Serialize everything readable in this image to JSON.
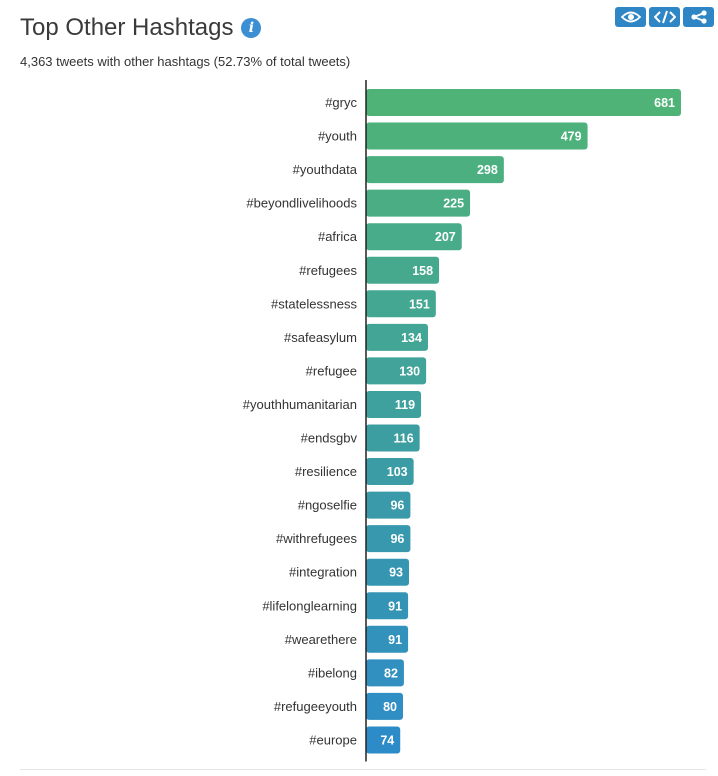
{
  "header": {
    "title": "Top Other Hashtags",
    "info_icon": "info-icon",
    "subtitle": "4,363 tweets with other hashtags (52.73% of total tweets)"
  },
  "toolbar": {
    "buttons": [
      {
        "name": "view-button",
        "icon": "eye-icon"
      },
      {
        "name": "embed-button",
        "icon": "code-icon"
      },
      {
        "name": "share-button",
        "icon": "share-icon"
      }
    ]
  },
  "colors": {
    "accent_blue": "#2f86c5",
    "bar_green": "#4fb378",
    "bar_blue": "#2d8cc7"
  },
  "chart_data": {
    "type": "bar",
    "orientation": "horizontal",
    "categories": [
      "#gryc",
      "#youth",
      "#youthdata",
      "#beyondlivelihoods",
      "#africa",
      "#refugees",
      "#statelessness",
      "#safeasylum",
      "#refugee",
      "#youthhumanitarian",
      "#endsgbv",
      "#resilience",
      "#ngoselfie",
      "#withrefugees",
      "#integration",
      "#lifelonglearning",
      "#wearethere",
      "#ibelong",
      "#refugeeyouth",
      "#europe"
    ],
    "values": [
      681,
      479,
      298,
      225,
      207,
      158,
      151,
      134,
      130,
      119,
      116,
      103,
      96,
      96,
      93,
      91,
      91,
      82,
      80,
      74
    ],
    "title": "Top Other Hashtags",
    "xlabel": "",
    "ylabel": "",
    "xlim": [
      0,
      681
    ],
    "grid": false,
    "legend": "none"
  }
}
